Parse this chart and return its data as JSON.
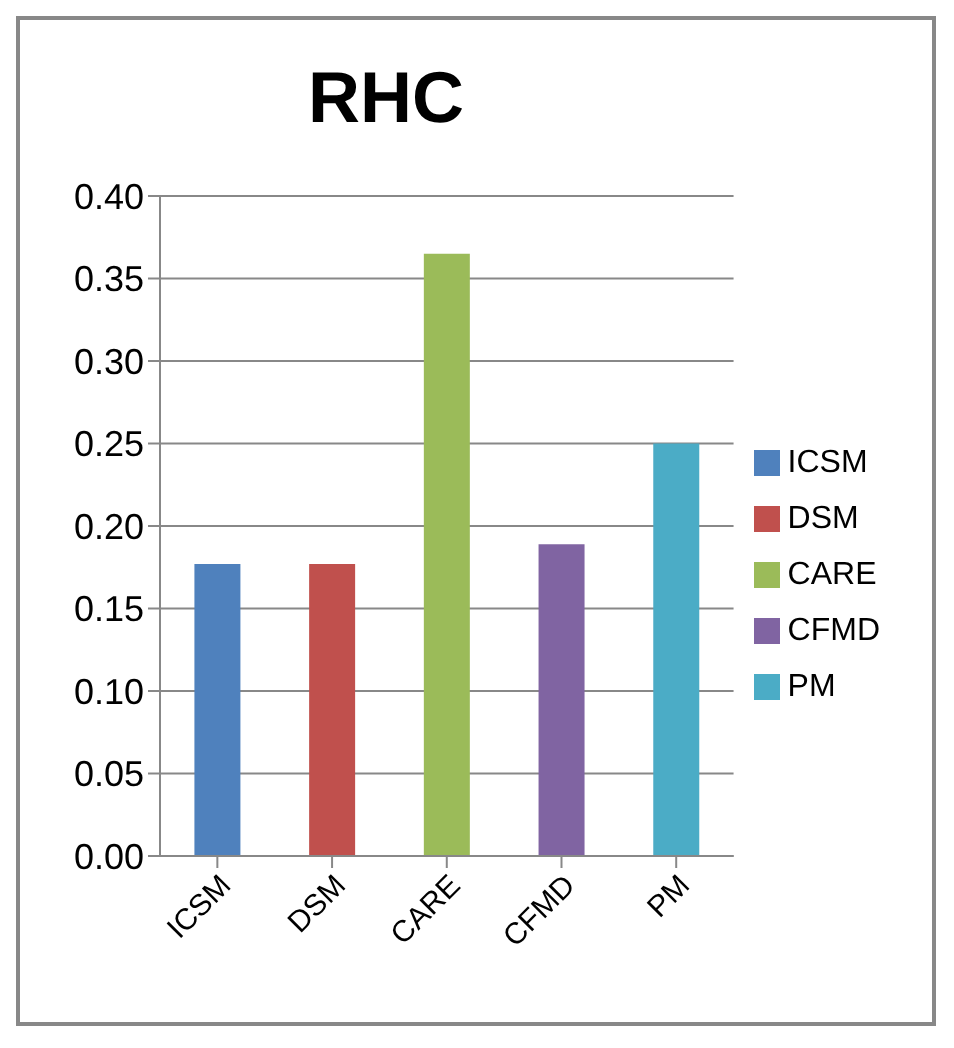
{
  "chart_data": {
    "type": "bar",
    "title": "RHC",
    "categories": [
      "ICSM",
      "DSM",
      "CARE",
      "CFMD",
      "PM"
    ],
    "series": [
      {
        "name": "ICSM",
        "color": "#4f81bd",
        "values": [
          0.177,
          null,
          null,
          null,
          null
        ]
      },
      {
        "name": "DSM",
        "color": "#c0504d",
        "values": [
          null,
          0.177,
          null,
          null,
          null
        ]
      },
      {
        "name": "CARE",
        "color": "#9bbb59",
        "values": [
          null,
          null,
          0.365,
          null,
          null
        ]
      },
      {
        "name": "CFMD",
        "color": "#8064a2",
        "values": [
          null,
          null,
          null,
          0.189,
          null
        ]
      },
      {
        "name": "PM",
        "color": "#4bacc6",
        "values": [
          null,
          null,
          null,
          null,
          0.25
        ]
      }
    ],
    "ylim": [
      0,
      0.4
    ],
    "yticks": [
      {
        "value": 0,
        "label": "0.00"
      },
      {
        "value": 0.05,
        "label": "0.05"
      },
      {
        "value": 0.1,
        "label": "0.10"
      },
      {
        "value": 0.15,
        "label": "0.15"
      },
      {
        "value": 0.2,
        "label": "0.20"
      },
      {
        "value": 0.25,
        "label": "0.25"
      },
      {
        "value": 0.3,
        "label": "0.30"
      },
      {
        "value": 0.35,
        "label": "0.35"
      },
      {
        "value": 0.4,
        "label": "0.40"
      }
    ],
    "grid": "y",
    "legend": "right"
  }
}
